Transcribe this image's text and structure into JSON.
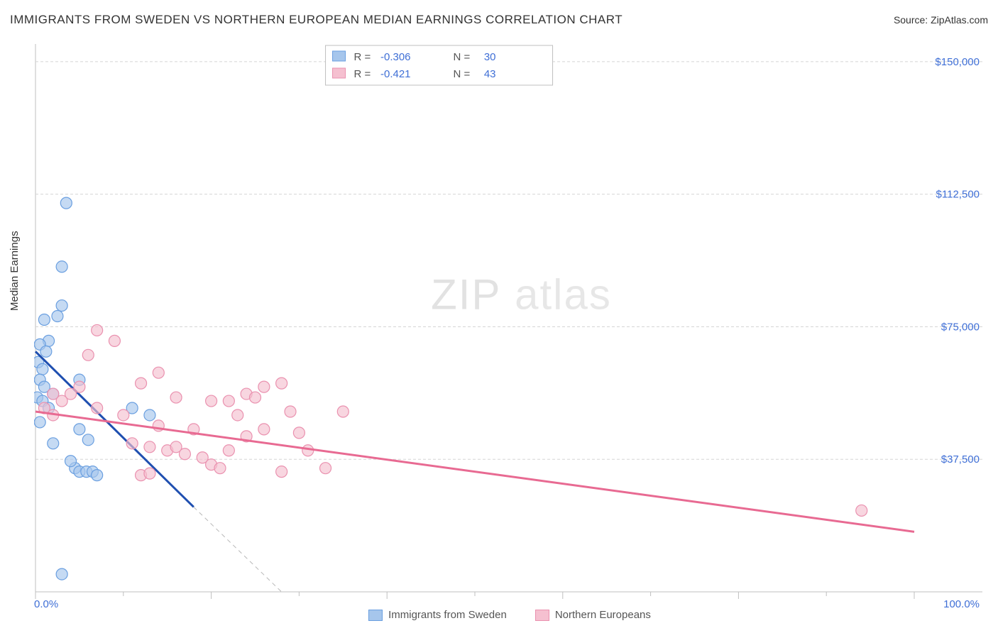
{
  "title": "IMMIGRANTS FROM SWEDEN VS NORTHERN EUROPEAN MEDIAN EARNINGS CORRELATION CHART",
  "source_label": "Source: ZipAtlas.com",
  "ylabel": "Median Earnings",
  "watermark_bold": "ZIP",
  "watermark_light": "atlas",
  "xlim": [
    0,
    100
  ],
  "ylim": [
    0,
    155000
  ],
  "x_ticks_major": [
    0,
    20,
    40,
    60,
    80,
    100
  ],
  "x_ticks_minor": [
    10,
    30,
    50,
    70,
    90
  ],
  "x_tick_labels": {
    "0": "0.0%",
    "100": "100.0%"
  },
  "y_gridlines": [
    37500,
    75000,
    112500,
    150000
  ],
  "y_tick_labels": [
    "$37,500",
    "$75,000",
    "$112,500",
    "$150,000"
  ],
  "background_color": "#ffffff",
  "grid_color": "#d5d5d5",
  "stats_box": {
    "rows": [
      {
        "color_fill": "#a6c6ec",
        "color_stroke": "#6a9fe0",
        "R": "-0.306",
        "N": "30"
      },
      {
        "color_fill": "#f5c0d0",
        "color_stroke": "#ea91af",
        "R": "-0.421",
        "N": "43"
      }
    ]
  },
  "legend_bottom": [
    {
      "label": "Immigrants from Sweden",
      "fill": "#a6c6ec",
      "stroke": "#6a9fe0"
    },
    {
      "label": "Northern Europeans",
      "fill": "#f5c0d0",
      "stroke": "#ea91af"
    }
  ],
  "series": [
    {
      "name": "sweden",
      "marker_fill": "#a6c6ec",
      "marker_stroke": "#6a9fe0",
      "marker_opacity": 0.65,
      "marker_r": 8,
      "line_color": "#1f4fb0",
      "line_width": 3,
      "trend": {
        "x1": 0,
        "y1": 68000,
        "x2": 18,
        "y2": 24000
      },
      "trend_ext_dash": {
        "x1": 18,
        "y1": 24000,
        "x2": 28,
        "y2": 0
      },
      "points": [
        [
          3.5,
          110000
        ],
        [
          3,
          92000
        ],
        [
          3,
          81000
        ],
        [
          2.5,
          78000
        ],
        [
          1,
          77000
        ],
        [
          1.5,
          71000
        ],
        [
          0.5,
          70000
        ],
        [
          1.2,
          68000
        ],
        [
          0.3,
          65000
        ],
        [
          0.8,
          63000
        ],
        [
          0.5,
          60000
        ],
        [
          5,
          60000
        ],
        [
          1,
          58000
        ],
        [
          2,
          56000
        ],
        [
          0.2,
          55000
        ],
        [
          0.8,
          54000
        ],
        [
          1.5,
          52000
        ],
        [
          11,
          52000
        ],
        [
          13,
          50000
        ],
        [
          5,
          46000
        ],
        [
          6,
          43000
        ],
        [
          2,
          42000
        ],
        [
          4.5,
          35000
        ],
        [
          5,
          34000
        ],
        [
          5.8,
          34000
        ],
        [
          6.5,
          34000
        ],
        [
          7,
          33000
        ],
        [
          4,
          37000
        ],
        [
          0.5,
          48000
        ],
        [
          3,
          5000
        ]
      ]
    },
    {
      "name": "northern_eu",
      "marker_fill": "#f5c0d0",
      "marker_stroke": "#ea91af",
      "marker_opacity": 0.65,
      "marker_r": 8,
      "line_color": "#e86a92",
      "line_width": 3,
      "trend": {
        "x1": 0,
        "y1": 51000,
        "x2": 100,
        "y2": 17000
      },
      "points": [
        [
          7,
          74000
        ],
        [
          9,
          71000
        ],
        [
          6,
          67000
        ],
        [
          14,
          62000
        ],
        [
          12,
          59000
        ],
        [
          28,
          59000
        ],
        [
          16,
          55000
        ],
        [
          20,
          54000
        ],
        [
          22,
          54000
        ],
        [
          24,
          56000
        ],
        [
          26,
          58000
        ],
        [
          25,
          55000
        ],
        [
          23,
          50000
        ],
        [
          14,
          47000
        ],
        [
          18,
          46000
        ],
        [
          29,
          51000
        ],
        [
          10,
          50000
        ],
        [
          11,
          42000
        ],
        [
          13,
          41000
        ],
        [
          15,
          40000
        ],
        [
          16,
          41000
        ],
        [
          17,
          39000
        ],
        [
          19,
          38000
        ],
        [
          20,
          36000
        ],
        [
          21,
          35000
        ],
        [
          22,
          40000
        ],
        [
          24,
          44000
        ],
        [
          26,
          46000
        ],
        [
          7,
          52000
        ],
        [
          4,
          56000
        ],
        [
          5,
          58000
        ],
        [
          3,
          54000
        ],
        [
          2,
          56000
        ],
        [
          1,
          52000
        ],
        [
          2,
          50000
        ],
        [
          12,
          33000
        ],
        [
          13,
          33500
        ],
        [
          28,
          34000
        ],
        [
          33,
          35000
        ],
        [
          35,
          51000
        ],
        [
          30,
          45000
        ],
        [
          31,
          40000
        ],
        [
          94,
          23000
        ]
      ]
    }
  ]
}
